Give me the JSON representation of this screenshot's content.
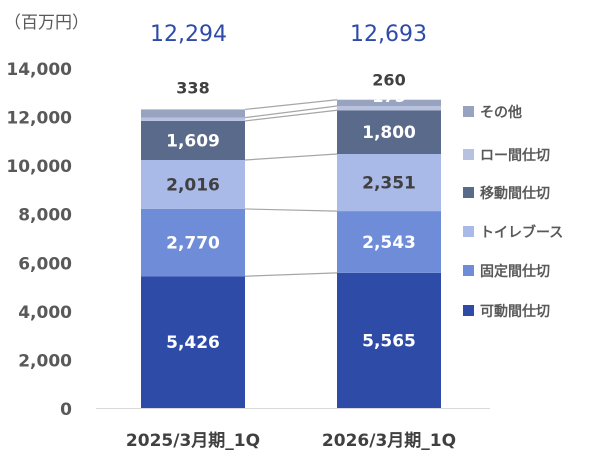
{
  "unit_label": "（百万円）",
  "chart_data": {
    "type": "bar",
    "stacked": true,
    "unit": "（百万円）",
    "categories": [
      "2025/3月期_1Q",
      "2026/3月期_1Q"
    ],
    "totals": [
      "12,294",
      "12,693"
    ],
    "ylim": [
      0,
      14000
    ],
    "yticks": [
      "0",
      "2,000",
      "4,000",
      "6,000",
      "8,000",
      "10,000",
      "12,000",
      "14,000"
    ],
    "legend_position": "right",
    "series": [
      {
        "name": "可動間仕切",
        "values": [
          5426,
          5565
        ],
        "labels": [
          "5,426",
          "5,565"
        ],
        "color": "#2E4BA8",
        "label_color": "#ffffff"
      },
      {
        "name": "固定間仕切",
        "values": [
          2770,
          2543
        ],
        "labels": [
          "2,770",
          "2,543"
        ],
        "color": "#6E8CD8",
        "label_color": "#ffffff"
      },
      {
        "name": "トイレブース",
        "values": [
          2016,
          2351
        ],
        "labels": [
          "2,016",
          "2,351"
        ],
        "color": "#A9B9E8",
        "label_color": "#404040"
      },
      {
        "name": "移動間仕切",
        "values": [
          1609,
          1800
        ],
        "labels": [
          "1,609",
          "1,800"
        ],
        "color": "#5A6A8A",
        "label_color": "#ffffff"
      },
      {
        "name": "ロー間仕切",
        "values": [
          135,
          175
        ],
        "labels": [
          "135",
          "175"
        ],
        "color": "#B7C2E0",
        "label_color": "#ffffff"
      },
      {
        "name": "その他",
        "values": [
          338,
          260
        ],
        "labels": [
          "338",
          "260"
        ],
        "color": "#98A3C0",
        "label_color": "#404040"
      }
    ]
  }
}
